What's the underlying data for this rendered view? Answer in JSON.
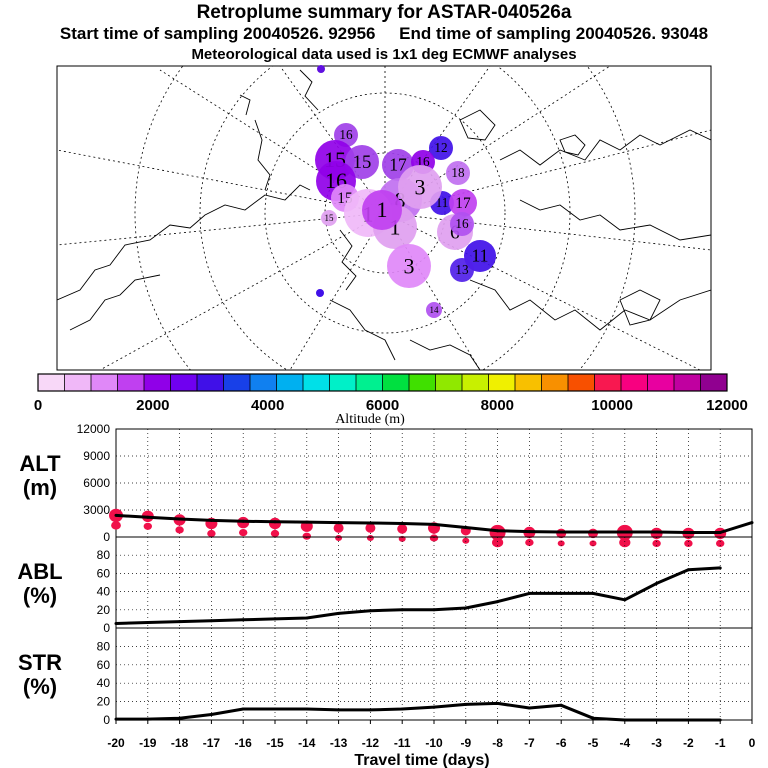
{
  "header": {
    "title": "Retroplume summary for ASTAR-040526a",
    "subtitle": "Start time of sampling 20040526. 92956     End time of sampling 20040526. 93048",
    "meteo": "Meteorological data used is 1x1 deg ECMWF analyses"
  },
  "colorbar": {
    "label": "Altitude (m)",
    "tick_labels": [
      "0",
      "2000",
      "4000",
      "6000",
      "8000",
      "10000",
      "12000"
    ],
    "colors": [
      "#f8d8f8",
      "#f0b8f8",
      "#e088f8",
      "#c040f0",
      "#9000e8",
      "#7000f0",
      "#4010e8",
      "#1840e8",
      "#1080f0",
      "#00b0f0",
      "#00e0e8",
      "#00f0c8",
      "#00f090",
      "#00e040",
      "#40e000",
      "#90e800",
      "#c8f000",
      "#f0f000",
      "#f8c000",
      "#f89000",
      "#f85000",
      "#f81850",
      "#f80080",
      "#e800a0",
      "#c000a0",
      "#900090"
    ]
  },
  "map": {
    "markers": [
      {
        "label": "16",
        "color": "#a040e8"
      },
      {
        "label": "15",
        "color": "#9000e8"
      },
      {
        "label": "15",
        "color": "#a040e8"
      },
      {
        "label": "17",
        "color": "#a040e8"
      },
      {
        "label": "16",
        "color": "#9000e8"
      },
      {
        "label": "12",
        "color": "#4010e8"
      },
      {
        "label": "16",
        "color": "#9000e8"
      },
      {
        "label": "18",
        "color": "#c070f0"
      },
      {
        "label": "15",
        "color": "#e088f8"
      },
      {
        "label": "8",
        "color": "#c070f0"
      },
      {
        "label": "11",
        "color": "#4010e8"
      },
      {
        "label": "3",
        "color": "#e0a0f0"
      },
      {
        "label": "17",
        "color": "#c040f0"
      },
      {
        "label": "1",
        "color": "#f0b8f8"
      },
      {
        "label": "1",
        "color": "#e0a0f0"
      },
      {
        "label": "6",
        "color": "#e0a0f0"
      },
      {
        "label": "16",
        "color": "#b050f0"
      },
      {
        "label": "11",
        "color": "#4010e8"
      },
      {
        "label": "13",
        "color": "#5020e8"
      },
      {
        "label": "3",
        "color": "#e088f8"
      },
      {
        "label": "1",
        "color": "#c040f0"
      },
      {
        "label": "14",
        "color": "#b050f0"
      },
      {
        "label": "15",
        "color": "#e0a0f0"
      }
    ]
  },
  "chart_data": [
    {
      "type": "line",
      "name": "ALT",
      "ylabel": "ALT\n(m)",
      "ylabel_lines": [
        "ALT",
        "(m)"
      ],
      "x": [
        -20,
        -19,
        -18,
        -17,
        -16,
        -15,
        -14,
        -13,
        -12,
        -11,
        -10,
        -9,
        -8,
        -7,
        -6,
        -5,
        -4,
        -3,
        -2,
        -1,
        0
      ],
      "values": [
        2400,
        2200,
        2000,
        1850,
        1750,
        1700,
        1650,
        1600,
        1550,
        1500,
        1400,
        1050,
        700,
        600,
        550,
        550,
        550,
        550,
        500,
        500,
        1600
      ],
      "yticks": [
        0,
        3000,
        6000,
        9000,
        12000
      ],
      "ylim": [
        0,
        12000
      ],
      "xlim": [
        -20,
        0
      ],
      "spread": [
        {
          "x": -20,
          "y": 2400,
          "r": 7
        },
        {
          "x": -19,
          "y": 2300,
          "r": 6
        },
        {
          "x": -18,
          "y": 1900,
          "r": 6
        },
        {
          "x": -17,
          "y": 1500,
          "r": 6
        },
        {
          "x": -16,
          "y": 1600,
          "r": 6
        },
        {
          "x": -15,
          "y": 1500,
          "r": 6
        },
        {
          "x": -14,
          "y": 1200,
          "r": 6
        },
        {
          "x": -13,
          "y": 1000,
          "r": 5
        },
        {
          "x": -12,
          "y": 1000,
          "r": 5
        },
        {
          "x": -11,
          "y": 900,
          "r": 5
        },
        {
          "x": -10,
          "y": 1000,
          "r": 6
        },
        {
          "x": -9,
          "y": 700,
          "r": 5
        },
        {
          "x": -8,
          "y": 500,
          "r": 8
        },
        {
          "x": -7,
          "y": 500,
          "r": 6
        },
        {
          "x": -6,
          "y": 400,
          "r": 5
        },
        {
          "x": -5,
          "y": 400,
          "r": 5
        },
        {
          "x": -4,
          "y": 500,
          "r": 8
        },
        {
          "x": -3,
          "y": 400,
          "r": 6
        },
        {
          "x": -2,
          "y": 400,
          "r": 6
        },
        {
          "x": -1,
          "y": 400,
          "r": 6
        }
      ]
    },
    {
      "type": "line",
      "name": "ABL",
      "ylabel_lines": [
        "ABL",
        "(%)"
      ],
      "x": [
        -20,
        -19,
        -18,
        -17,
        -16,
        -15,
        -14,
        -13,
        -12,
        -11,
        -10,
        -9,
        -8,
        -7,
        -6,
        -5,
        -4,
        -3,
        -2,
        -1
      ],
      "values": [
        5,
        6,
        7,
        8,
        9,
        10,
        11,
        16,
        19,
        20,
        20,
        22,
        29,
        38,
        38,
        38,
        31,
        49,
        64,
        66
      ],
      "yticks": [
        0,
        20,
        40,
        60,
        80
      ],
      "ylim": [
        0,
        100
      ],
      "xlim": [
        -20,
        0
      ]
    },
    {
      "type": "line",
      "name": "STR",
      "ylabel_lines": [
        "STR",
        "(%)"
      ],
      "x": [
        -20,
        -19,
        -18,
        -17,
        -16,
        -15,
        -14,
        -13,
        -12,
        -11,
        -10,
        -9,
        -8,
        -7,
        -6,
        -5,
        -4,
        -3,
        -2,
        -1
      ],
      "values": [
        1,
        1,
        2,
        6,
        12,
        12,
        12,
        11,
        11,
        12,
        14,
        17,
        18,
        13,
        16,
        2,
        0,
        0,
        0,
        0
      ],
      "yticks": [
        0,
        20,
        40,
        60,
        80
      ],
      "ylim": [
        0,
        100
      ],
      "xlim": [
        -20,
        0
      ],
      "xlabel": "Travel time (days)",
      "xtick_labels": [
        "-20",
        "-19",
        "-18",
        "-17",
        "-16",
        "-15",
        "-14",
        "-13",
        "-12",
        "-11",
        "-10",
        "-9",
        "-8",
        "-7",
        "-6",
        "-5",
        "-4",
        "-3",
        "-2",
        "-1",
        "0"
      ]
    }
  ]
}
